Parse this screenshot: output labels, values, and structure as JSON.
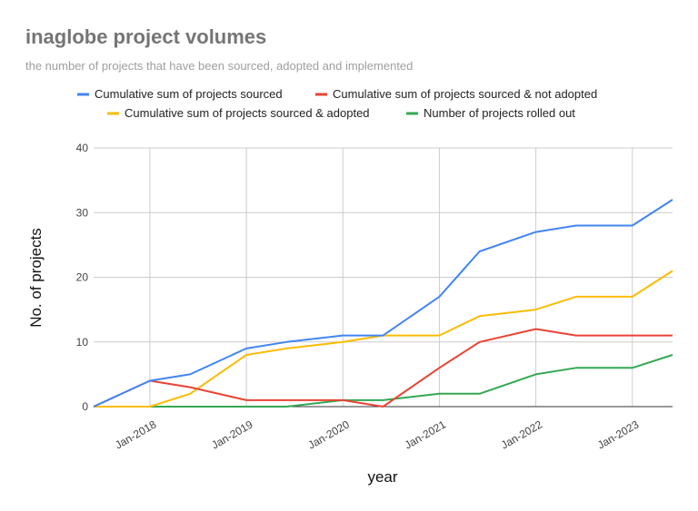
{
  "chart_data": {
    "type": "line",
    "title": "inaglobe project volumes",
    "subtitle": "the number of projects that have been sourced, adopted and implemented",
    "xlabel": "year",
    "ylabel": "No. of projects",
    "ylim": [
      0,
      40
    ],
    "yticks": [
      "0",
      "10",
      "20",
      "30",
      "40"
    ],
    "xticks": [
      "Jan-2018",
      "Jan-2019",
      "Jan-2020",
      "Jan-2021",
      "Jan-2022",
      "Jan-2023"
    ],
    "x": [
      "2017-06",
      "2018-01",
      "2018-06",
      "2019-01",
      "2019-06",
      "2020-01",
      "2020-06",
      "2021-01",
      "2021-06",
      "2022-01",
      "2022-06",
      "2023-01",
      "2023-06"
    ],
    "grid": true,
    "legend": "top",
    "series": [
      {
        "name": "Cumulative sum of projects sourced",
        "color": "#4285f4",
        "values": [
          0,
          4,
          5,
          9,
          10,
          11,
          11,
          17,
          24,
          27,
          28,
          28,
          32
        ]
      },
      {
        "name": "Cumulative sum of projects sourced & not adopted",
        "color": "#ea4335",
        "values": [
          0,
          4,
          3,
          1,
          1,
          1,
          0,
          6,
          10,
          12,
          11,
          11,
          11
        ]
      },
      {
        "name": "Cumulative sum of projects sourced & adopted",
        "color": "#fbbc04",
        "values": [
          0,
          0,
          2,
          8,
          9,
          10,
          11,
          11,
          14,
          15,
          17,
          17,
          21
        ]
      },
      {
        "name": "Number of projects rolled out",
        "color": "#34a853",
        "values": [
          0,
          0,
          0,
          0,
          0,
          1,
          1,
          2,
          2,
          5,
          6,
          6,
          8
        ]
      }
    ]
  }
}
